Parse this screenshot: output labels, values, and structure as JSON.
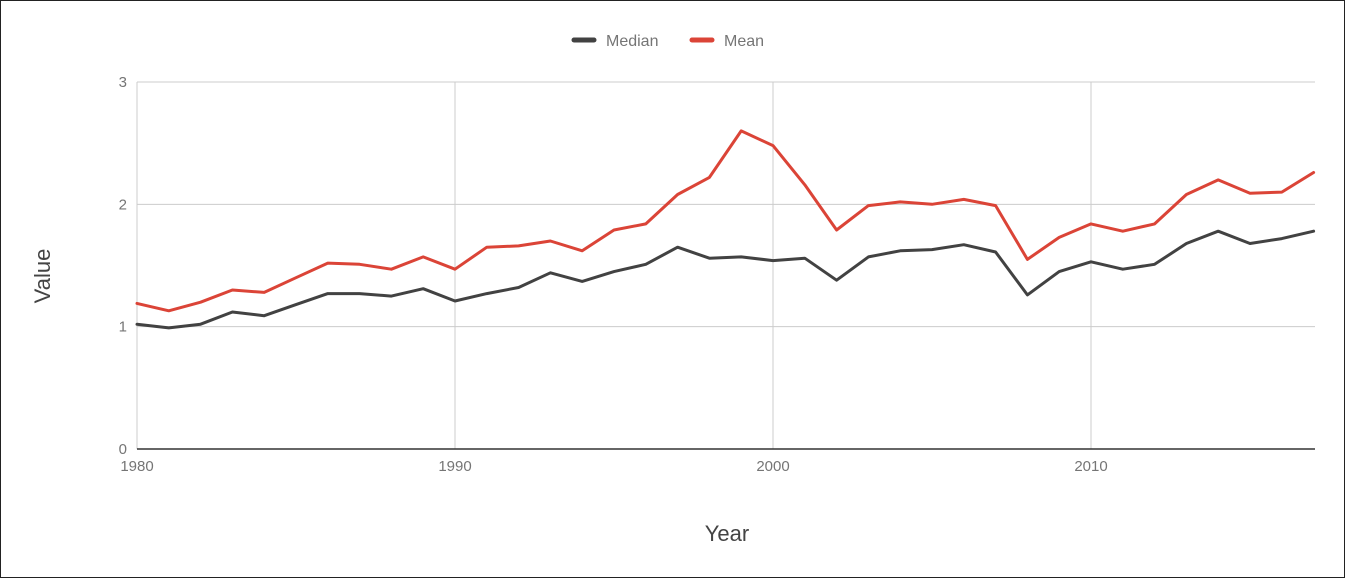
{
  "chart_data": {
    "type": "line",
    "title": "",
    "xlabel": "Year",
    "ylabel": "Value",
    "xlim": [
      1980,
      2017
    ],
    "ylim": [
      0,
      3
    ],
    "x_ticks": [
      1980,
      1990,
      2000,
      2010
    ],
    "x_tick_labels": [
      "1980",
      "1990",
      "2000",
      "2010"
    ],
    "y_ticks": [
      0,
      1,
      2,
      3
    ],
    "y_tick_labels": [
      "0",
      "1",
      "2",
      "3"
    ],
    "grid": true,
    "legend_position": "top-center",
    "x": [
      1980,
      1981,
      1982,
      1983,
      1984,
      1985,
      1986,
      1987,
      1988,
      1989,
      1990,
      1991,
      1992,
      1993,
      1994,
      1995,
      1996,
      1997,
      1998,
      1999,
      2000,
      2001,
      2002,
      2003,
      2004,
      2005,
      2006,
      2007,
      2008,
      2009,
      2010,
      2011,
      2012,
      2013,
      2014,
      2015,
      2016,
      2017
    ],
    "series": [
      {
        "name": "Median",
        "color": "#424242",
        "values": [
          1.02,
          0.99,
          1.02,
          1.12,
          1.09,
          1.18,
          1.27,
          1.27,
          1.25,
          1.31,
          1.21,
          1.27,
          1.32,
          1.44,
          1.37,
          1.45,
          1.51,
          1.65,
          1.56,
          1.57,
          1.54,
          1.56,
          1.38,
          1.57,
          1.62,
          1.63,
          1.67,
          1.61,
          1.26,
          1.45,
          1.53,
          1.47,
          1.51,
          1.68,
          1.78,
          1.68,
          1.72,
          1.78
        ]
      },
      {
        "name": "Mean",
        "color": "#db4437",
        "values": [
          1.19,
          1.13,
          1.2,
          1.3,
          1.28,
          1.4,
          1.52,
          1.51,
          1.47,
          1.57,
          1.47,
          1.65,
          1.66,
          1.7,
          1.62,
          1.79,
          1.84,
          2.08,
          2.22,
          2.6,
          2.48,
          2.16,
          1.79,
          1.99,
          2.02,
          2.0,
          2.04,
          1.99,
          1.55,
          1.73,
          1.84,
          1.78,
          1.84,
          2.08,
          2.2,
          2.09,
          2.1,
          2.26
        ]
      }
    ]
  }
}
